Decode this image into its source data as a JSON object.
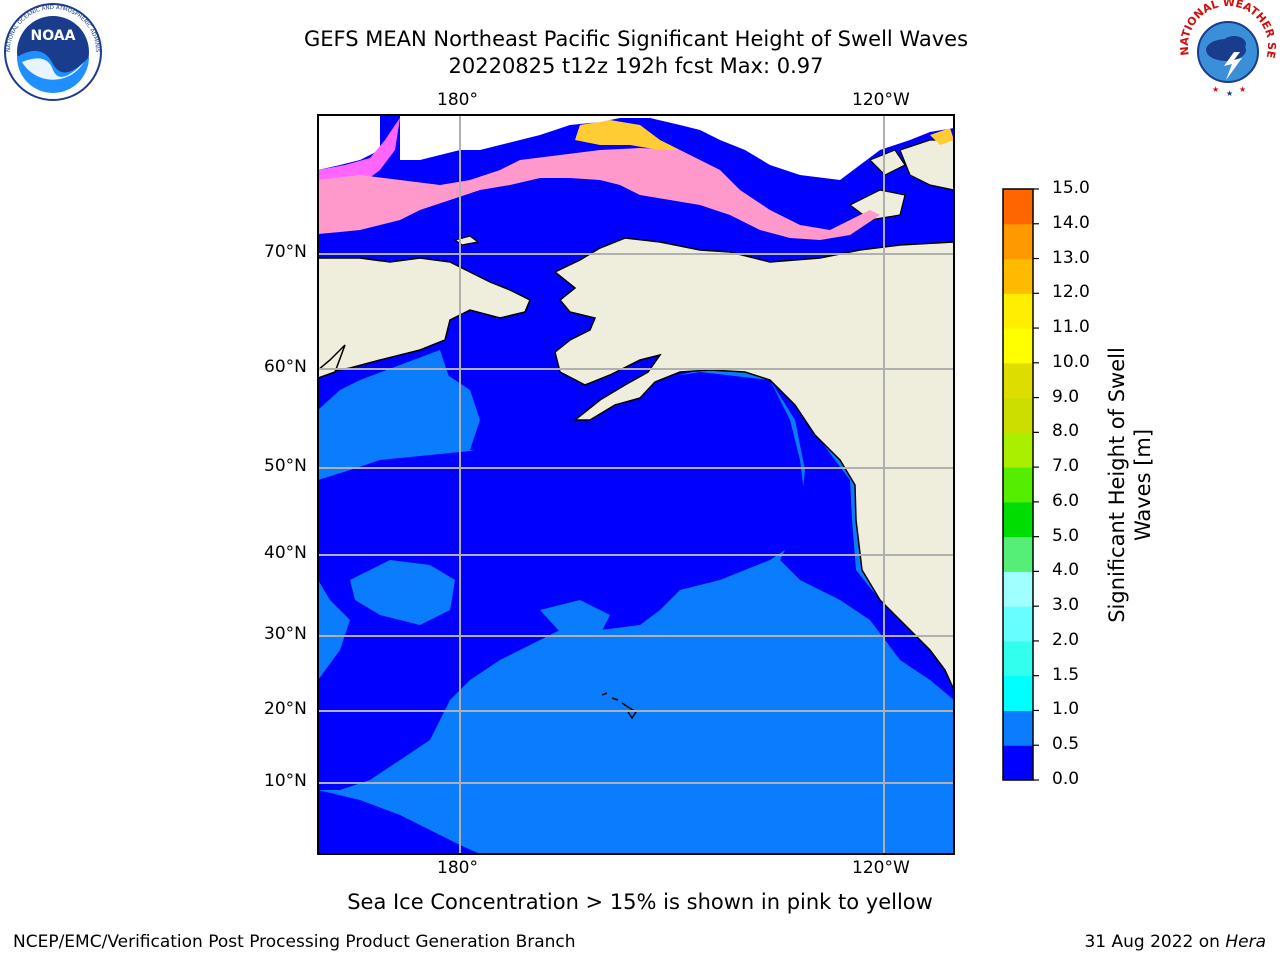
{
  "header": {
    "title_line1": "GEFS MEAN Northeast Pacific Significant Height of Swell Waves",
    "title_line2": "20220825 t12z 192h fcst   Max: 0.97"
  },
  "logos": {
    "left": "NOAA",
    "left_ring_text": "NATIONAL OCEANIC AND ATMOSPHERIC ADMINISTRATION · U.S. DEPARTMENT OF COMMERCE",
    "right_ring_text": "NATIONAL WEATHER SERVICE"
  },
  "map": {
    "lon_labels_top": [
      "180°",
      "120°W"
    ],
    "lon_labels_bottom": [
      "180°",
      "120°W"
    ],
    "lat_labels": [
      "70°N",
      "60°N",
      "50°N",
      "40°N",
      "30°N",
      "20°N",
      "10°N"
    ],
    "colors": {
      "land": "#efeedc",
      "swell_0_0_5": "#0000ff",
      "swell_0_5_1_0": "#0a7dff",
      "ice_low": "#ff66ff",
      "ice_mid": "#ff99cc",
      "ice_high": "#ffcc33"
    }
  },
  "colorbar": {
    "title": "Significant Height of Swell\nWaves [m]",
    "ticks": [
      "15.0",
      "14.0",
      "13.0",
      "12.0",
      "11.0",
      "10.0",
      "9.0",
      "8.0",
      "7.0",
      "6.0",
      "5.0",
      "4.0",
      "3.0",
      "2.0",
      "1.5",
      "1.0",
      "0.5",
      "0.0"
    ],
    "colors_bottom_to_top": [
      "#0000ff",
      "#0a7dff",
      "#00ffff",
      "#33ffee",
      "#66ffff",
      "#a0ffff",
      "#55ee77",
      "#00dd00",
      "#55ee00",
      "#aaee00",
      "#ccdd00",
      "#dddd00",
      "#ffff00",
      "#ffee00",
      "#ffbb00",
      "#ff9900",
      "#ff6600",
      "#ff3300",
      "#ff0000"
    ]
  },
  "note": "Sea Ice Concentration > 15% is shown in pink to yellow",
  "footer": {
    "left": "NCEP/EMC/Verification Post Processing Product Generation Branch",
    "right_prefix": "31 Aug 2022 on ",
    "right_machine": "Hera"
  }
}
